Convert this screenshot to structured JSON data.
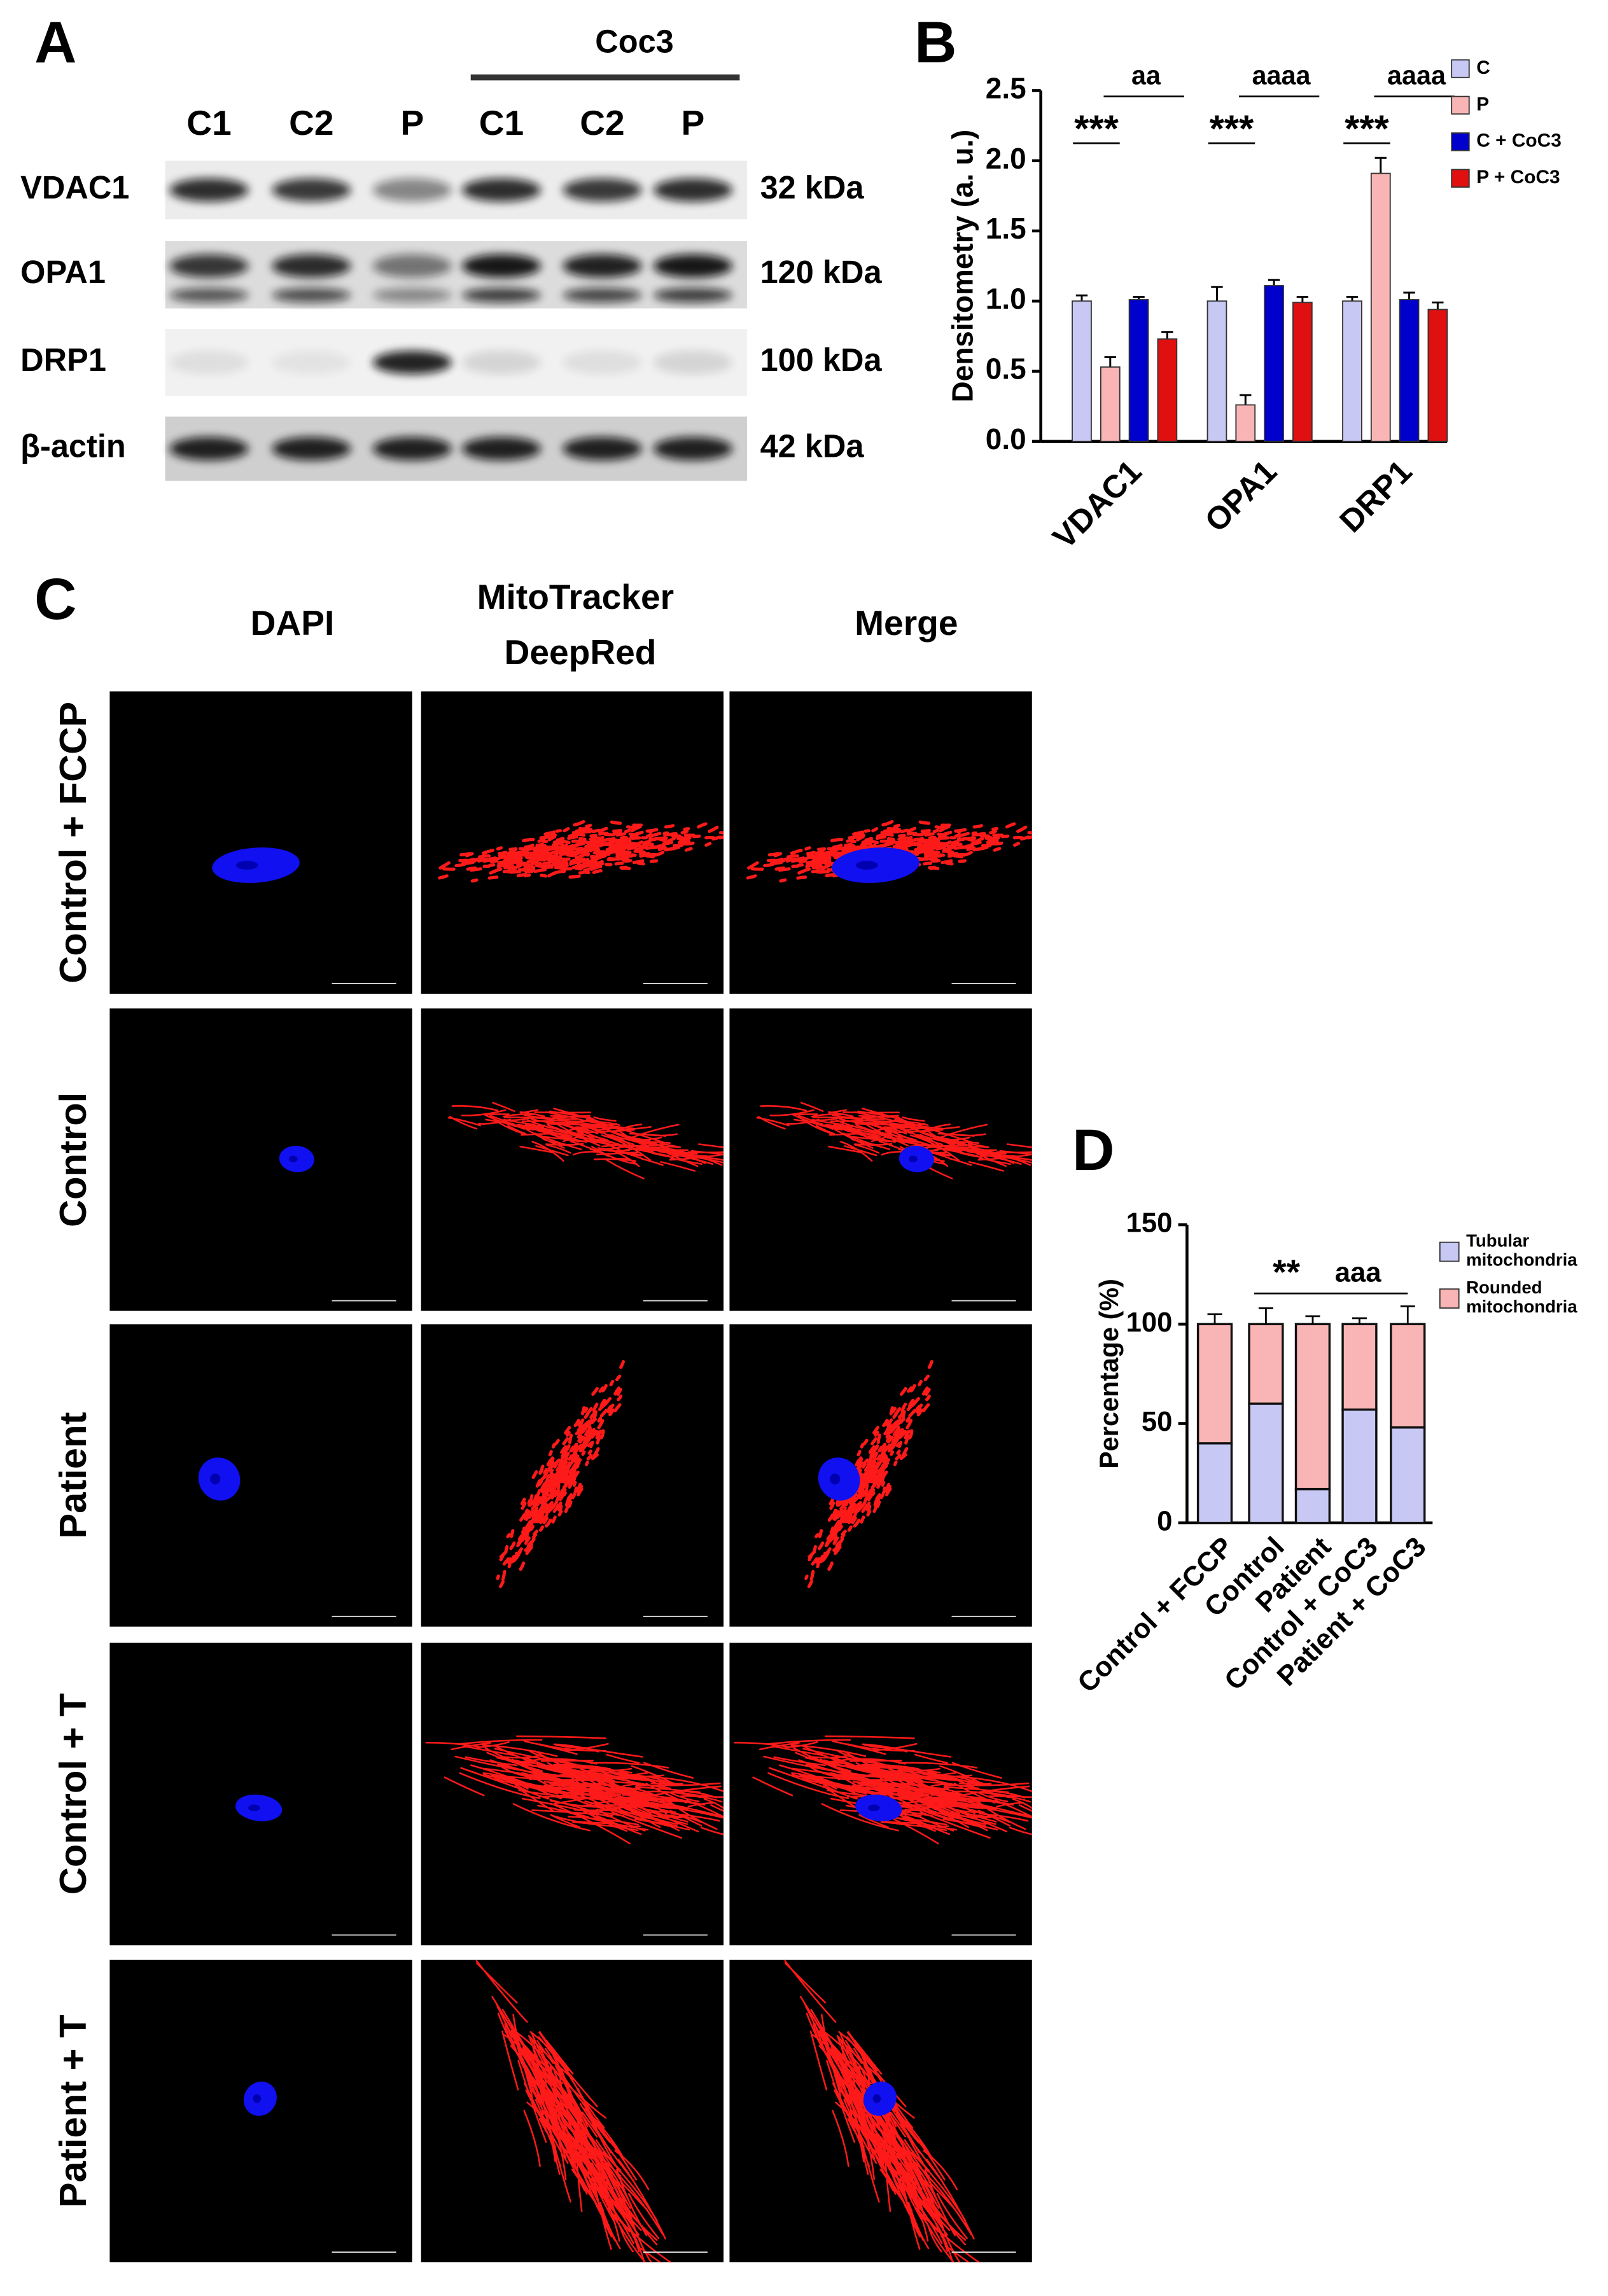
{
  "figure": {
    "panel_labels": [
      "A",
      "B",
      "C",
      "D"
    ]
  },
  "blot": {
    "treatment": "Coc3",
    "lanes": [
      "C1",
      "C2",
      "P",
      "C1",
      "C2",
      "P"
    ],
    "proteins": [
      "VDAC1",
      "OPA1",
      "DRP1",
      "β-actin"
    ],
    "sizes": [
      "32 kDa",
      "120 kDa",
      "100 kDa",
      "42 kDa"
    ]
  },
  "microscopy": {
    "channels": [
      "DAPI",
      "MitoTracker DeepRed",
      "Merge"
    ],
    "conditions": [
      "Control + FCCP",
      "Control",
      "Patient",
      "Control + T",
      "Patient + T"
    ]
  },
  "chart_data": [
    {
      "type": "bar",
      "y_label": "Densitometry (a. u.)",
      "categories": [
        "VDAC1",
        "OPA1",
        "DRP1"
      ],
      "series": [
        {
          "name": "C",
          "color": "#c8c8f4",
          "values": [
            1.0,
            1.0,
            1.0
          ],
          "errors": [
            0.04,
            0.1,
            0.03
          ]
        },
        {
          "name": "P",
          "color": "#f9b5b5",
          "values": [
            0.53,
            0.26,
            1.91
          ],
          "errors": [
            0.07,
            0.07,
            0.11
          ]
        },
        {
          "name": "C + CoC3",
          "color": "#0000cc",
          "values": [
            1.01,
            1.11,
            1.01
          ],
          "errors": [
            0.02,
            0.04,
            0.05
          ]
        },
        {
          "name": "P + CoC3",
          "color": "#e01010",
          "values": [
            0.73,
            0.99,
            0.94
          ],
          "errors": [
            0.05,
            0.04,
            0.05
          ]
        }
      ],
      "ylim": [
        0,
        2.5
      ],
      "yticks": [
        {
          "value": 0,
          "label": "0.0"
        },
        0.5,
        {
          "value": 1,
          "label": "1.0"
        },
        1.5,
        {
          "value": 2,
          "label": "2.0"
        },
        2.5
      ],
      "annotations": [
        "***",
        "***",
        "***",
        "aa",
        "aaaa",
        "aaaa"
      ],
      "legend": "upper right"
    },
    {
      "type": "stacked_bar",
      "y_label": "Percentage (%)",
      "categories": [
        "Control + FCCP",
        "Control",
        "Patient",
        "Control + CoC3",
        "Patient + CoC3"
      ],
      "series": [
        {
          "name": "Tubular mitochondria",
          "color": "#c8c8f4",
          "values": [
            40,
            60,
            17,
            57,
            48
          ],
          "errors": [
            5,
            8,
            4,
            3,
            9
          ]
        },
        {
          "name": "Rounded mitochondria",
          "color": "#f9b5b5",
          "values": [
            60,
            40,
            83,
            43,
            52
          ],
          "errors": [
            5,
            8,
            4,
            3,
            9
          ]
        }
      ],
      "ylim": [
        0,
        150
      ],
      "yticks": [
        0,
        50,
        100,
        150
      ],
      "annotations": [
        "**",
        "aaa"
      ],
      "legend": "upper right"
    }
  ]
}
